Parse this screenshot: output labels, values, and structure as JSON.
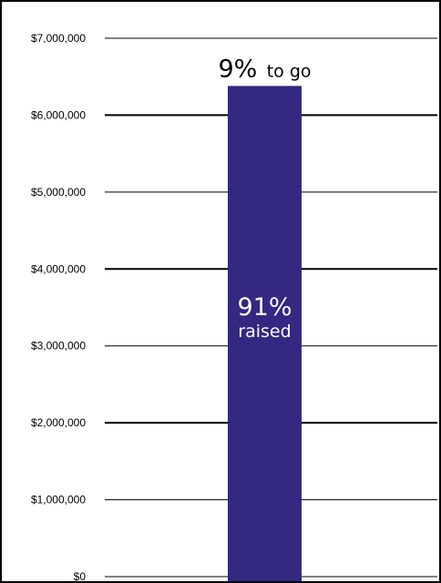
{
  "chart_data": {
    "type": "bar",
    "title": "",
    "xlabel": "",
    "ylabel": "",
    "categories": [
      ""
    ],
    "values": [
      6380000
    ],
    "ylim": [
      0,
      7000000
    ],
    "yticks": [
      0,
      1000000,
      2000000,
      3000000,
      4000000,
      5000000,
      6000000,
      7000000
    ],
    "ytick_labels": [
      "$0",
      "$1,000,000",
      "$2,000,000",
      "$3,000,000",
      "$4,000,000",
      "$5,000,000",
      "$6,000,000",
      "$7,000,000"
    ],
    "grid": true,
    "legend": "none",
    "bar_color": "#332882",
    "annotations": {
      "remaining_percent": "9%",
      "remaining_text": "to go",
      "raised_percent": "91%",
      "raised_text": "raised"
    }
  }
}
